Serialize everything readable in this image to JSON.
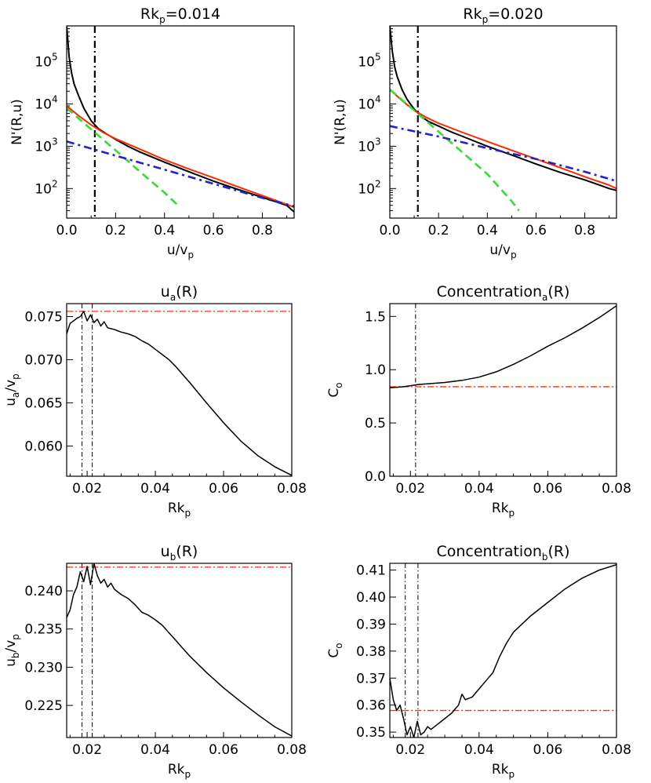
{
  "chart_data": [
    {
      "type": "line",
      "scale": "log-y",
      "title": "Rk",
      "title_sub": "p",
      "title_rest": "=0.014",
      "xlabel": "u/v",
      "xlabel_sub": "p",
      "ylabel": "N'(R,u)",
      "xlim": [
        0,
        0.93
      ],
      "ylim": [
        20,
        700000
      ],
      "xticks": [
        "0.0",
        "0.2",
        "0.4",
        "0.6",
        "0.8"
      ],
      "yticks": [
        {
          "base": "10",
          "exp": "2",
          "v": 100
        },
        {
          "base": "10",
          "exp": "3",
          "v": 1000
        },
        {
          "base": "10",
          "exp": "4",
          "v": 10000
        },
        {
          "base": "10",
          "exp": "5",
          "v": 100000
        }
      ],
      "vline": 0.115,
      "series": [
        {
          "color": "#000000",
          "style": "solid",
          "x": [
            0,
            0.005,
            0.01,
            0.02,
            0.03,
            0.05,
            0.07,
            0.1,
            0.13,
            0.16,
            0.2,
            0.25,
            0.3,
            0.4,
            0.5,
            0.6,
            0.7,
            0.8,
            0.9,
            0.93
          ],
          "y": [
            700000,
            300000,
            130000,
            55000,
            30000,
            15000,
            8000,
            4000,
            2600,
            2000,
            1450,
            1000,
            730,
            420,
            250,
            150,
            95,
            62,
            40,
            28
          ]
        },
        {
          "color": "#ff2a00",
          "style": "solid",
          "x": [
            0,
            0.05,
            0.1,
            0.15,
            0.2,
            0.3,
            0.4,
            0.5,
            0.6,
            0.7,
            0.8,
            0.9,
            0.93
          ],
          "y": [
            9000,
            5200,
            3200,
            2100,
            1500,
            850,
            480,
            290,
            180,
            110,
            68,
            42,
            36
          ]
        },
        {
          "color": "#33dd33",
          "style": "dashed",
          "x": [
            0,
            0.1,
            0.2,
            0.3,
            0.4,
            0.455
          ],
          "y": [
            8000,
            2500,
            800,
            250,
            80,
            40
          ]
        },
        {
          "color": "#2222cc",
          "style": "dashdot",
          "x": [
            0,
            0.2,
            0.4,
            0.6,
            0.8,
            0.93
          ],
          "y": [
            1300,
            600,
            280,
            130,
            60,
            38
          ]
        }
      ]
    },
    {
      "type": "line",
      "scale": "log-y",
      "title": "Rk",
      "title_sub": "p",
      "title_rest": "=0.020",
      "xlabel": "u/v",
      "xlabel_sub": "p",
      "ylabel": "N'(R,u)",
      "xlim": [
        0,
        0.93
      ],
      "ylim": [
        20,
        700000
      ],
      "xticks": [
        "0.0",
        "0.2",
        "0.4",
        "0.6",
        "0.8"
      ],
      "yticks": [
        {
          "base": "10",
          "exp": "2",
          "v": 100
        },
        {
          "base": "10",
          "exp": "3",
          "v": 1000
        },
        {
          "base": "10",
          "exp": "4",
          "v": 10000
        },
        {
          "base": "10",
          "exp": "5",
          "v": 100000
        }
      ],
      "vline": 0.115,
      "series": [
        {
          "color": "#000000",
          "style": "solid",
          "x": [
            0,
            0.005,
            0.01,
            0.02,
            0.03,
            0.05,
            0.07,
            0.1,
            0.13,
            0.16,
            0.2,
            0.25,
            0.3,
            0.4,
            0.5,
            0.6,
            0.7,
            0.8,
            0.9,
            0.93
          ],
          "y": [
            700000,
            350000,
            180000,
            75000,
            45000,
            22000,
            13000,
            7500,
            5000,
            3800,
            3000,
            2200,
            1700,
            1000,
            620,
            380,
            240,
            160,
            100,
            90
          ]
        },
        {
          "color": "#ff2a00",
          "style": "solid",
          "x": [
            0,
            0.05,
            0.1,
            0.15,
            0.2,
            0.3,
            0.4,
            0.5,
            0.6,
            0.7,
            0.8,
            0.9,
            0.93
          ],
          "y": [
            22000,
            12000,
            7000,
            4800,
            3500,
            2100,
            1300,
            800,
            500,
            310,
            190,
            120,
            100
          ]
        },
        {
          "color": "#33dd33",
          "style": "dashed",
          "x": [
            0,
            0.1,
            0.2,
            0.3,
            0.4,
            0.5,
            0.53
          ],
          "y": [
            22000,
            7000,
            2200,
            700,
            220,
            50,
            30
          ]
        },
        {
          "color": "#2222cc",
          "style": "dashdot",
          "x": [
            0,
            0.2,
            0.4,
            0.6,
            0.8,
            0.93
          ],
          "y": [
            3000,
            1700,
            900,
            500,
            250,
            150
          ]
        }
      ]
    },
    {
      "type": "line",
      "title": "u",
      "title_sub": "a",
      "title_rest": "(R)",
      "xlabel": "Rk",
      "xlabel_sub": "p",
      "ylabel": "u",
      "ylabel_sub": "a",
      "ylabel_rest": "/v",
      "ylabel_sub2": "p",
      "xlim": [
        0.014,
        0.08
      ],
      "ylim": [
        0.0565,
        0.0765
      ],
      "xticks": [
        {
          "v": 0.02,
          "t": "0.02"
        },
        {
          "v": 0.04,
          "t": "0.04"
        },
        {
          "v": 0.06,
          "t": "0.06"
        },
        {
          "v": 0.08,
          "t": "0.08"
        }
      ],
      "yticks": [
        {
          "v": 0.06,
          "t": "0.060"
        },
        {
          "v": 0.065,
          "t": "0.065"
        },
        {
          "v": 0.07,
          "t": "0.070"
        },
        {
          "v": 0.075,
          "t": "0.075"
        }
      ],
      "hline": 0.0756,
      "vlines": [
        0.0185,
        0.0215
      ],
      "series": [
        {
          "color": "#000000",
          "x": [
            0.014,
            0.015,
            0.016,
            0.017,
            0.018,
            0.019,
            0.02,
            0.021,
            0.022,
            0.023,
            0.024,
            0.025,
            0.026,
            0.028,
            0.03,
            0.032,
            0.034,
            0.036,
            0.038,
            0.04,
            0.042,
            0.044,
            0.046,
            0.048,
            0.05,
            0.055,
            0.06,
            0.065,
            0.07,
            0.075,
            0.08
          ],
          "y": [
            0.073,
            0.0742,
            0.0745,
            0.0748,
            0.075,
            0.0756,
            0.0745,
            0.0752,
            0.0743,
            0.0747,
            0.0739,
            0.0744,
            0.0737,
            0.0735,
            0.0732,
            0.073,
            0.0727,
            0.0722,
            0.0718,
            0.0712,
            0.0706,
            0.07,
            0.0692,
            0.0683,
            0.0674,
            0.065,
            0.0627,
            0.0606,
            0.0589,
            0.0576,
            0.0566
          ]
        }
      ]
    },
    {
      "type": "line",
      "title": "Concentration",
      "title_sub": "a",
      "title_rest": "(R)",
      "xlabel": "Rk",
      "xlabel_sub": "p",
      "ylabel": "C",
      "ylabel_sub": "o",
      "xlim": [
        0.014,
        0.08
      ],
      "ylim": [
        0,
        1.62
      ],
      "xticks": [
        {
          "v": 0.02,
          "t": "0.02"
        },
        {
          "v": 0.04,
          "t": "0.04"
        },
        {
          "v": 0.06,
          "t": "0.06"
        },
        {
          "v": 0.08,
          "t": "0.08"
        }
      ],
      "yticks": [
        {
          "v": 0,
          "t": "0.0"
        },
        {
          "v": 0.5,
          "t": "0.5"
        },
        {
          "v": 1.0,
          "t": "1.0"
        },
        {
          "v": 1.5,
          "t": "1.5"
        }
      ],
      "hline": 0.84,
      "vlines": [
        0.0215
      ],
      "series": [
        {
          "color": "#000000",
          "x": [
            0.014,
            0.016,
            0.018,
            0.02,
            0.022,
            0.024,
            0.026,
            0.03,
            0.035,
            0.04,
            0.045,
            0.05,
            0.055,
            0.06,
            0.065,
            0.07,
            0.075,
            0.08
          ],
          "y": [
            0.83,
            0.835,
            0.84,
            0.85,
            0.86,
            0.865,
            0.87,
            0.88,
            0.9,
            0.93,
            0.98,
            1.05,
            1.13,
            1.22,
            1.3,
            1.39,
            1.49,
            1.6
          ]
        }
      ]
    },
    {
      "type": "line",
      "title": "u",
      "title_sub": "b",
      "title_rest": "(R)",
      "xlabel": "Rk",
      "xlabel_sub": "p",
      "ylabel": "u",
      "ylabel_sub": "b",
      "ylabel_rest": "/v",
      "ylabel_sub2": "p",
      "xlim": [
        0.014,
        0.08
      ],
      "ylim": [
        0.2208,
        0.2436
      ],
      "xticks": [
        {
          "v": 0.02,
          "t": "0.02"
        },
        {
          "v": 0.04,
          "t": "0.04"
        },
        {
          "v": 0.06,
          "t": "0.06"
        },
        {
          "v": 0.08,
          "t": "0.08"
        }
      ],
      "yticks": [
        {
          "v": 0.225,
          "t": "0.225"
        },
        {
          "v": 0.23,
          "t": "0.230"
        },
        {
          "v": 0.235,
          "t": "0.235"
        },
        {
          "v": 0.24,
          "t": "0.240"
        }
      ],
      "hline": 0.2431,
      "vlines": [
        0.0185,
        0.0215
      ],
      "series": [
        {
          "color": "#000000",
          "x": [
            0.014,
            0.015,
            0.016,
            0.017,
            0.018,
            0.019,
            0.02,
            0.021,
            0.022,
            0.023,
            0.024,
            0.025,
            0.026,
            0.027,
            0.028,
            0.03,
            0.032,
            0.034,
            0.036,
            0.038,
            0.04,
            0.042,
            0.044,
            0.046,
            0.048,
            0.05,
            0.055,
            0.06,
            0.065,
            0.07,
            0.075,
            0.08
          ],
          "y": [
            0.2365,
            0.2375,
            0.2395,
            0.2405,
            0.2425,
            0.2412,
            0.2432,
            0.2408,
            0.2436,
            0.242,
            0.241,
            0.2415,
            0.2405,
            0.241,
            0.2402,
            0.2395,
            0.239,
            0.2382,
            0.2372,
            0.2368,
            0.2362,
            0.2355,
            0.2345,
            0.2335,
            0.2325,
            0.2315,
            0.2293,
            0.2273,
            0.2255,
            0.2238,
            0.2222,
            0.221
          ]
        }
      ]
    },
    {
      "type": "line",
      "title": "Concentration",
      "title_sub": "b",
      "title_rest": "(R)",
      "xlabel": "Rk",
      "xlabel_sub": "p",
      "ylabel": "C",
      "ylabel_sub": "o",
      "xlim": [
        0.014,
        0.08
      ],
      "ylim": [
        0.348,
        0.4125
      ],
      "xticks": [
        {
          "v": 0.02,
          "t": "0.02"
        },
        {
          "v": 0.04,
          "t": "0.04"
        },
        {
          "v": 0.06,
          "t": "0.06"
        },
        {
          "v": 0.08,
          "t": "0.08"
        }
      ],
      "yticks": [
        {
          "v": 0.35,
          "t": "0.35"
        },
        {
          "v": 0.36,
          "t": "0.36"
        },
        {
          "v": 0.37,
          "t": "0.37"
        },
        {
          "v": 0.38,
          "t": "0.38"
        },
        {
          "v": 0.39,
          "t": "0.39"
        },
        {
          "v": 0.4,
          "t": "0.40"
        },
        {
          "v": 0.41,
          "t": "0.41"
        }
      ],
      "hline": 0.358,
      "vlines": [
        0.0185,
        0.0222
      ],
      "series": [
        {
          "color": "#000000",
          "x": [
            0.014,
            0.015,
            0.016,
            0.017,
            0.018,
            0.019,
            0.02,
            0.021,
            0.022,
            0.023,
            0.024,
            0.025,
            0.026,
            0.028,
            0.03,
            0.032,
            0.034,
            0.035,
            0.036,
            0.038,
            0.04,
            0.042,
            0.044,
            0.046,
            0.048,
            0.05,
            0.055,
            0.06,
            0.065,
            0.07,
            0.075,
            0.08
          ],
          "y": [
            0.37,
            0.362,
            0.358,
            0.36,
            0.355,
            0.349,
            0.352,
            0.348,
            0.354,
            0.349,
            0.35,
            0.352,
            0.351,
            0.353,
            0.355,
            0.357,
            0.36,
            0.364,
            0.362,
            0.363,
            0.366,
            0.369,
            0.372,
            0.378,
            0.383,
            0.387,
            0.393,
            0.398,
            0.403,
            0.407,
            0.41,
            0.412
          ]
        }
      ]
    }
  ]
}
